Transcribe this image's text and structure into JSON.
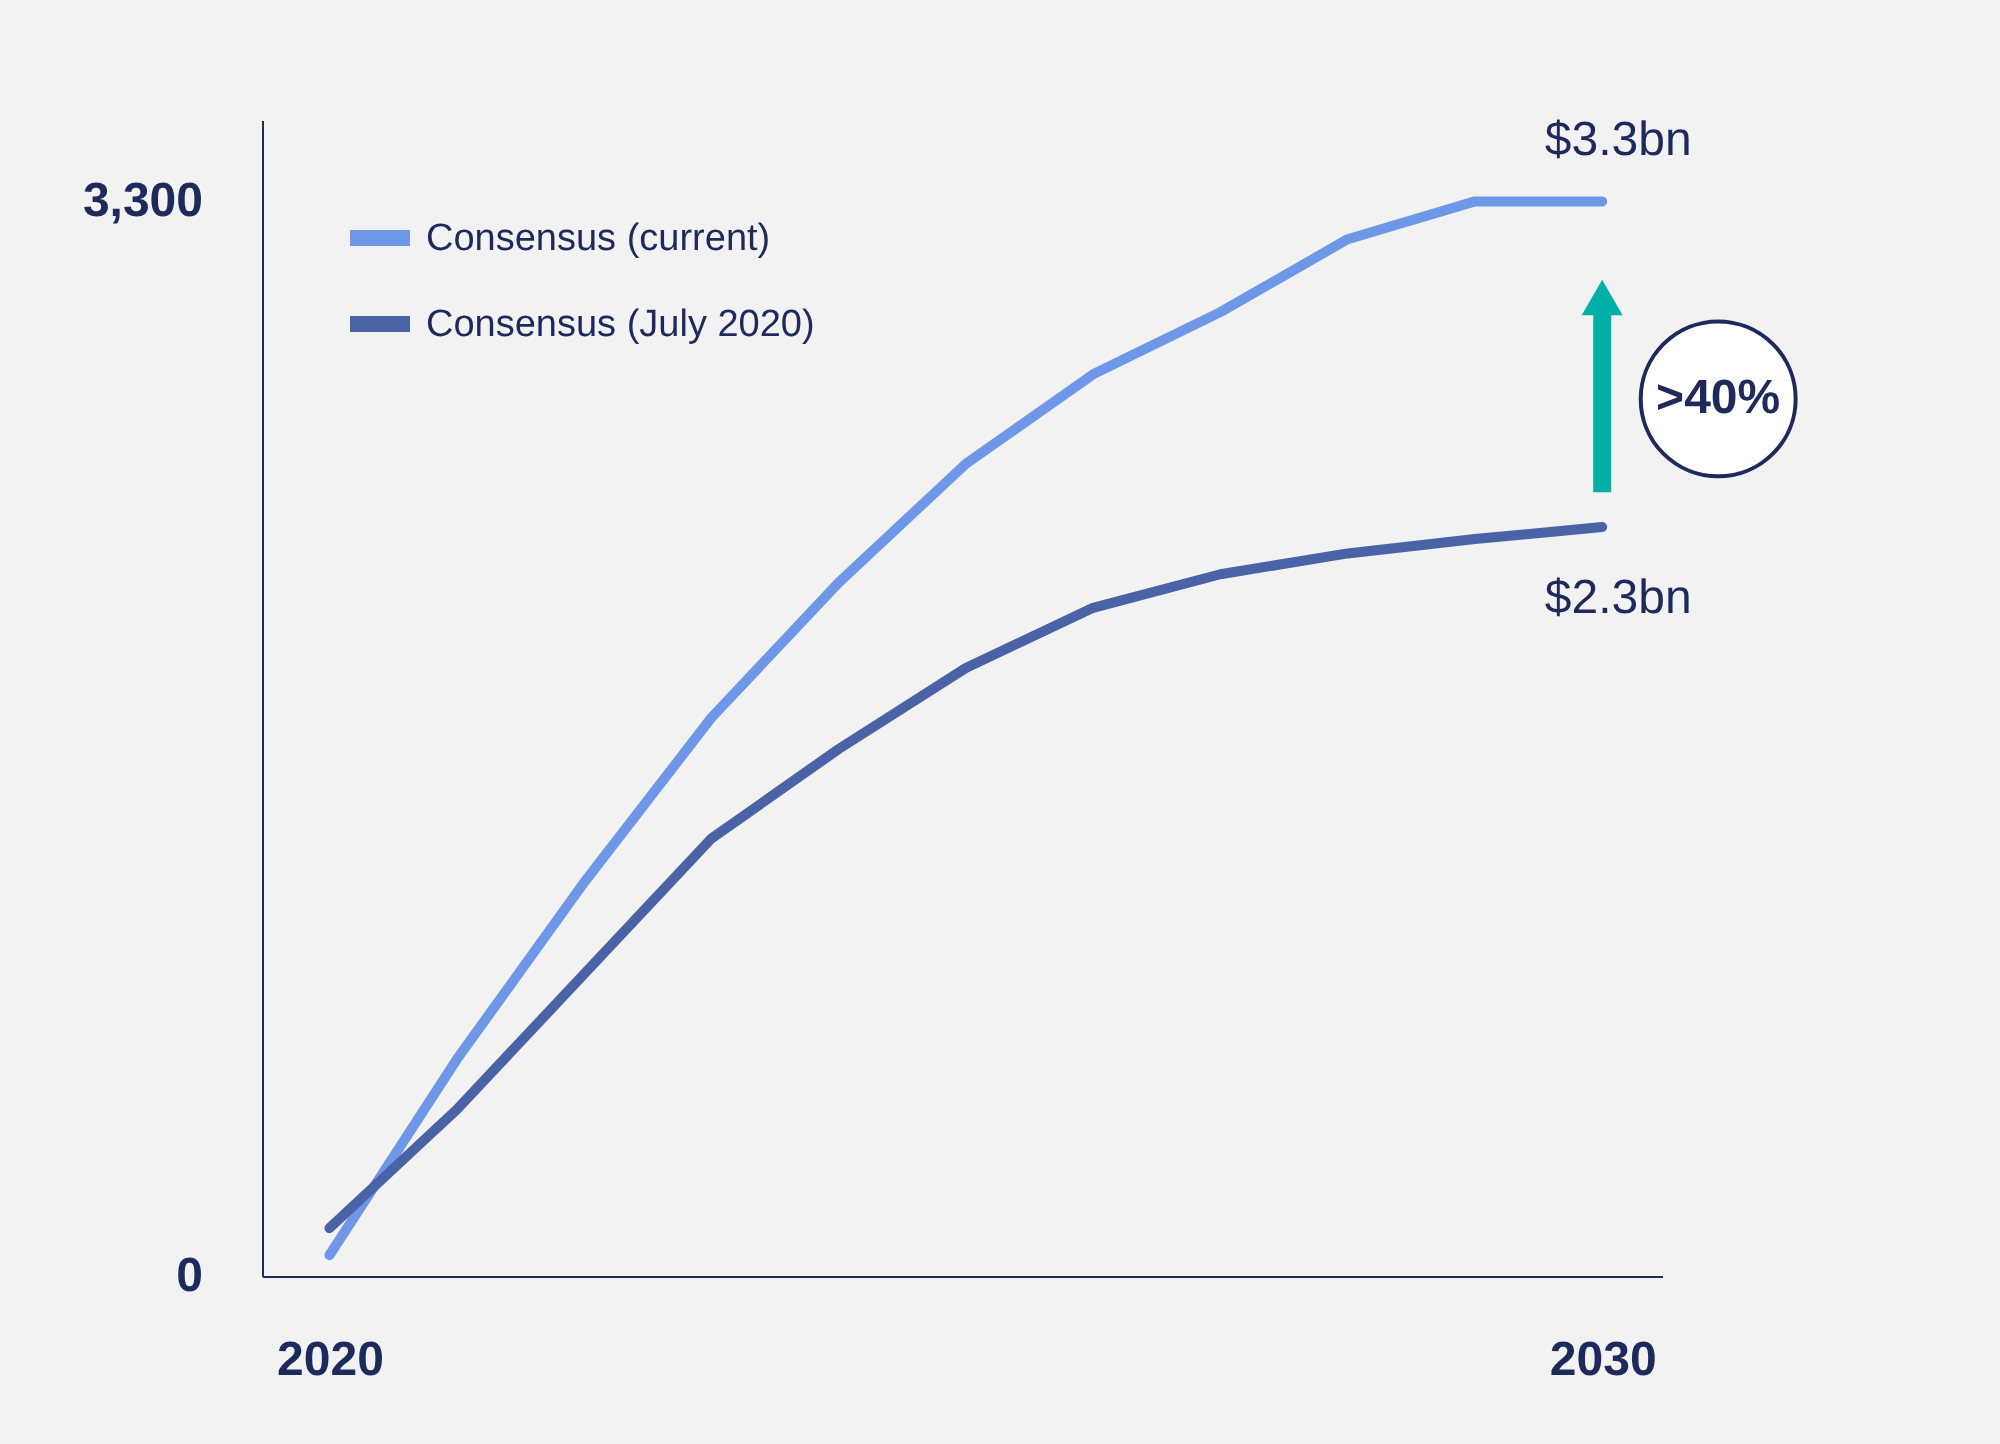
{
  "chart_data": {
    "type": "line",
    "x": [
      2020,
      2021,
      2022,
      2023,
      2024,
      2025,
      2026,
      2027,
      2028,
      2029,
      2030
    ],
    "series": [
      {
        "name": "Consensus (current)",
        "color": "#6f97e8",
        "values": [
          64,
          665,
          1208,
          1714,
          2129,
          2494,
          2769,
          2960,
          3184,
          3300,
          3300
        ]
      },
      {
        "name": "Consensus (July 2020)",
        "color": "#4a62a6",
        "values": [
          147,
          511,
          927,
          1343,
          1618,
          1867,
          2052,
          2155,
          2219,
          2263,
          2300
        ]
      }
    ],
    "xlim": [
      2019.47,
      2030.47
    ],
    "ylim": [
      0,
      3550
    ],
    "xticks": [
      2020,
      2030
    ],
    "yticks": [
      0,
      {
        "value": 3300,
        "label": "3,300"
      }
    ],
    "annotations": [
      {
        "text": "$3.3bn",
        "x": 2030,
        "y": 3300
      },
      {
        "text": "$2.3bn",
        "x": 2030,
        "y": 2300
      },
      ">40%"
    ],
    "legend": "top left",
    "grid": false,
    "marker": "none",
    "line_style": "solid"
  }
}
